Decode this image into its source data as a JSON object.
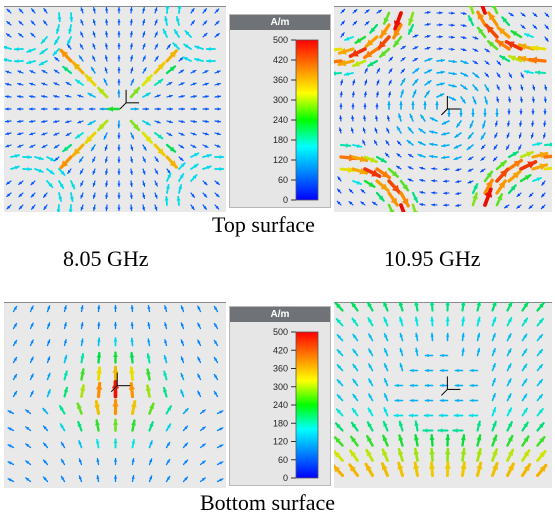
{
  "figure": {
    "top_caption": "Top surface",
    "bottom_caption": "Bottom surface",
    "freq_left": "8.05 GHz",
    "freq_right": "10.95 GHz"
  },
  "colorbar": {
    "unit": "A/m",
    "ticks": [
      "500",
      "420",
      "360",
      "300",
      "240",
      "180",
      "120",
      "60",
      "0"
    ],
    "stops": [
      "#ff0000",
      "#ff8000",
      "#ffff00",
      "#00ff00",
      "#00ffff",
      "#0080ff",
      "#0000ff"
    ]
  },
  "panels": [
    {
      "name": "top-left",
      "pattern": "x-cross-center",
      "frequency": "8.05 GHz",
      "surface": "Top surface"
    },
    {
      "name": "top-right",
      "pattern": "corner-arcs",
      "frequency": "10.95 GHz",
      "surface": "Top surface"
    },
    {
      "name": "bottom-left",
      "pattern": "center-hotspot",
      "frequency": "8.05 GHz",
      "surface": "Bottom surface"
    },
    {
      "name": "bottom-right",
      "pattern": "edge-bands",
      "frequency": "10.95 GHz",
      "surface": "Bottom surface"
    }
  ]
}
